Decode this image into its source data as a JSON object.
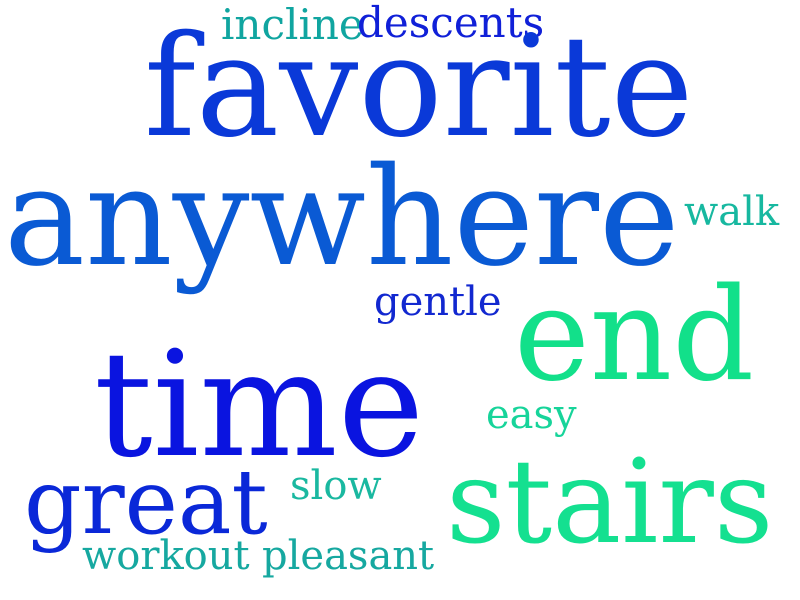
{
  "words": [
    {
      "text": "incline",
      "color": "#10a5a0"
    },
    {
      "text": "descents",
      "color": "#1020d8"
    },
    {
      "text": "favorite",
      "color": "#0a39d8"
    },
    {
      "text": "anywhere",
      "color": "#0a5ad4"
    },
    {
      "text": "walk",
      "color": "#17b8a0"
    },
    {
      "text": "gentle",
      "color": "#1228d0"
    },
    {
      "text": "end",
      "color": "#12e08a"
    },
    {
      "text": "time",
      "color": "#0a14e0"
    },
    {
      "text": "easy",
      "color": "#17d49a"
    },
    {
      "text": "slow",
      "color": "#1ab8a0"
    },
    {
      "text": "great",
      "color": "#0a28d8"
    },
    {
      "text": "stairs",
      "color": "#14e090"
    },
    {
      "text": "workout",
      "color": "#16a8a0"
    },
    {
      "text": "pleasant",
      "color": "#16a8a0"
    }
  ]
}
